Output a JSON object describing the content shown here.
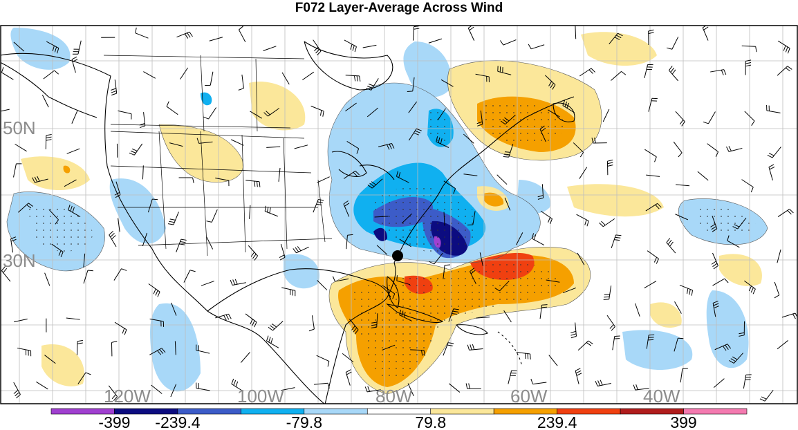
{
  "title": "F072 Layer-Average Across Wind",
  "map": {
    "lat_labels": [
      "50N",
      "30N"
    ],
    "lon_labels": [
      "120W",
      "100W",
      "80W",
      "60W",
      "40W"
    ],
    "label_color": "#8c8c8c",
    "storm_marker": "storm-center-dot"
  },
  "colorbar": {
    "colors": [
      "#a040d0",
      "#0c0c80",
      "#3c5cc8",
      "#10b0f0",
      "#a8d8f8",
      "#ffffff",
      "#fbe79a",
      "#f5a000",
      "#f04010",
      "#b01c1c",
      "#f47ab0"
    ],
    "labels": [
      "-399",
      "-239.4",
      "-79.8",
      "79.8",
      "239.4",
      "399"
    ]
  },
  "fields": {
    "negative_colors": [
      "#a8d8f8",
      "#10b0f0",
      "#3c5cc8",
      "#0c0c80",
      "#a040d0"
    ],
    "positive_colors": [
      "#fbe79a",
      "#f5a000",
      "#f04010"
    ]
  }
}
